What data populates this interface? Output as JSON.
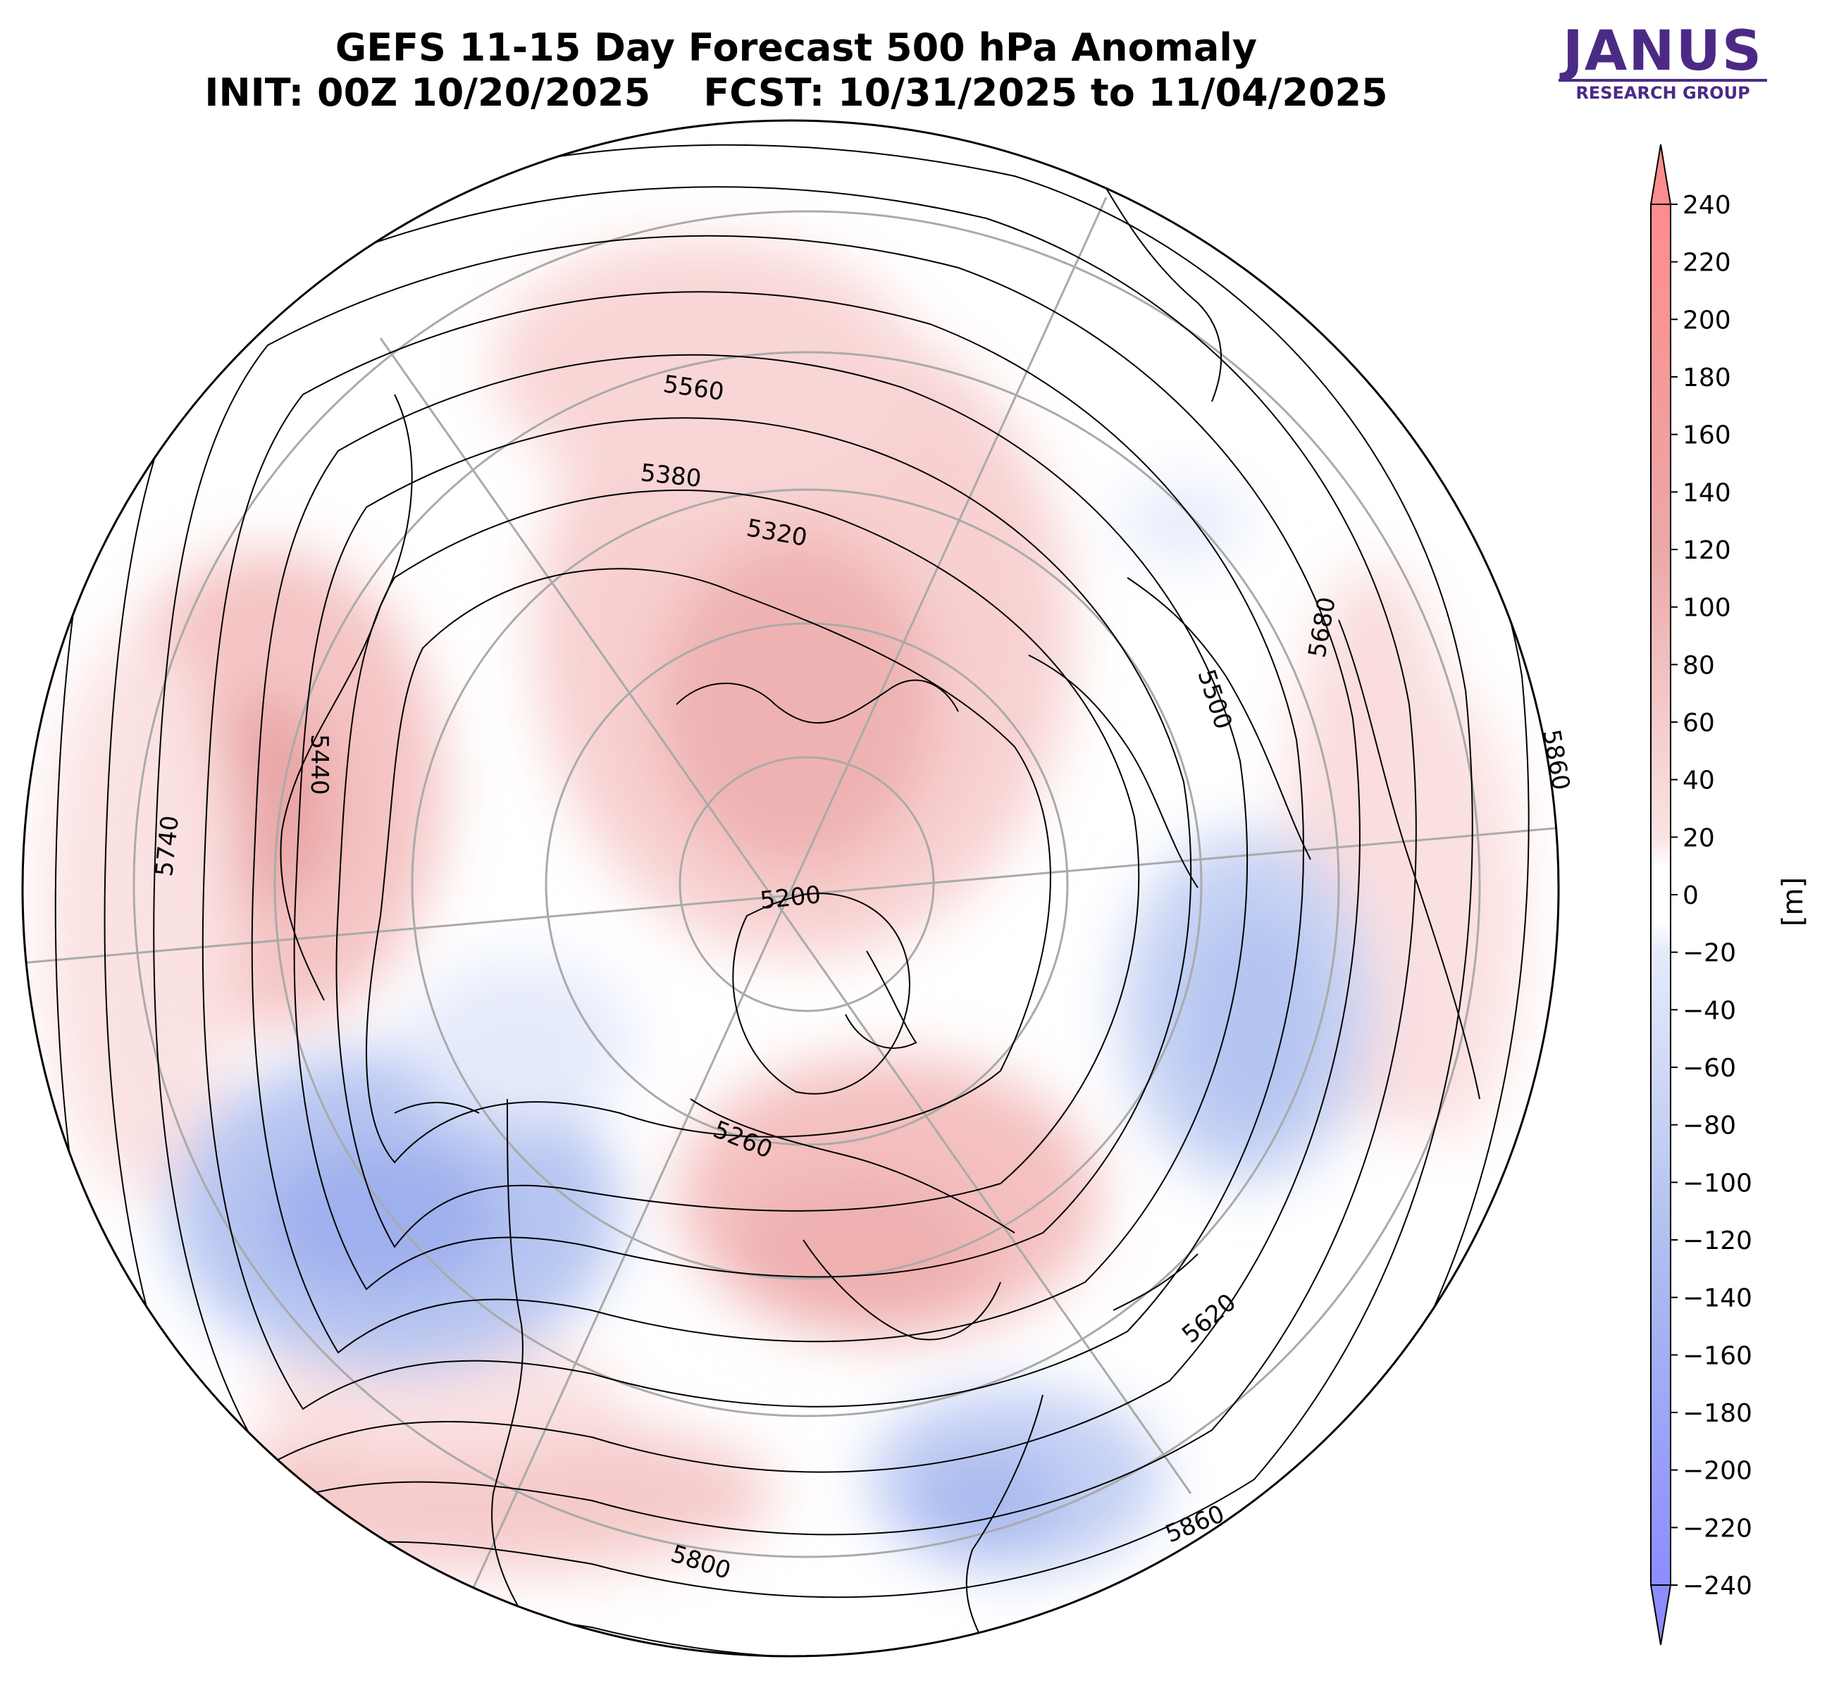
{
  "title": {
    "line1": "GEFS 11-15 Day Forecast 500 hPa Anomaly",
    "line2": "INIT: 00Z 10/20/2025    FCST: 10/31/2025 to 11/04/2025"
  },
  "logo": {
    "brand": "JANUS",
    "sub": "RESEARCH GROUP",
    "color": "#4b2a86"
  },
  "colorbar": {
    "unit": "[m]",
    "ticks": [
      "240",
      "220",
      "200",
      "180",
      "160",
      "140",
      "120",
      "100",
      "80",
      "60",
      "40",
      "20",
      "0",
      "−20",
      "−40",
      "−60",
      "−80",
      "−100",
      "−120",
      "−140",
      "−160",
      "−180",
      "−200",
      "−220",
      "−240"
    ],
    "tick_values": [
      240,
      220,
      200,
      180,
      160,
      140,
      120,
      100,
      80,
      60,
      40,
      20,
      0,
      -20,
      -40,
      -60,
      -80,
      -100,
      -120,
      -140,
      -160,
      -180,
      -200,
      -220,
      -240
    ],
    "positive_color": "#ff8c8c",
    "negative_color": "#8c8cff"
  },
  "contour_labels": [
    {
      "text": "5560"
    },
    {
      "text": "5380"
    },
    {
      "text": "5320"
    },
    {
      "text": "5500"
    },
    {
      "text": "5680"
    },
    {
      "text": "5860"
    },
    {
      "text": "5440"
    },
    {
      "text": "5740"
    },
    {
      "text": "5200"
    },
    {
      "text": "5260"
    },
    {
      "text": "5620"
    },
    {
      "text": "5860"
    },
    {
      "text": "5800"
    }
  ]
}
